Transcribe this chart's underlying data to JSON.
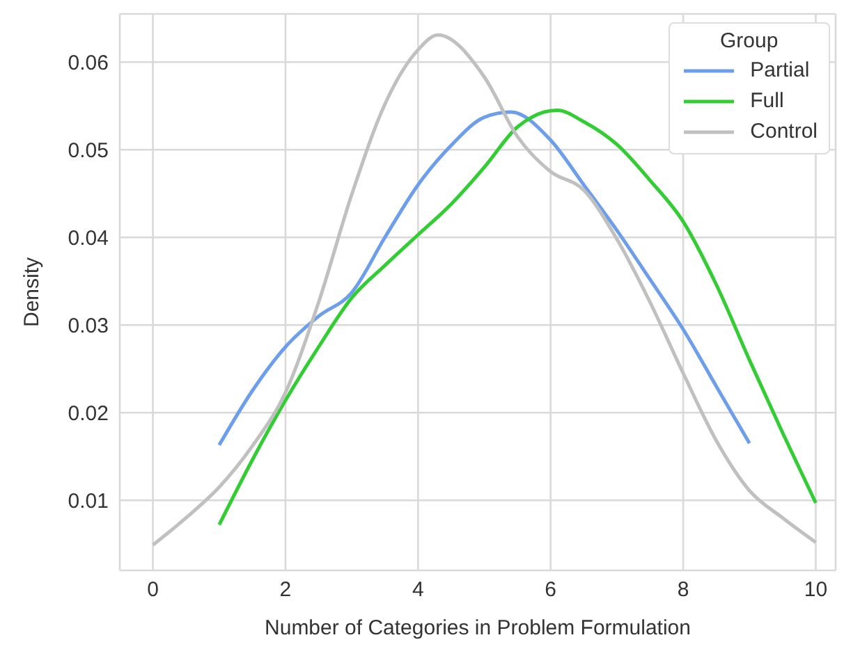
{
  "chart_data": {
    "type": "line",
    "xlabel": "Number of Categories in Problem Formulation",
    "ylabel": "Density",
    "legend_title": "Group",
    "legend": "top right",
    "grid": true,
    "marker": "none",
    "line_style": "solid",
    "xlim": [
      -0.5,
      10.3
    ],
    "xticks": [
      0,
      2,
      4,
      6,
      8,
      10
    ],
    "ylim": [
      0.002,
      0.0655
    ],
    "yticks": [
      0.01,
      0.02,
      0.03,
      0.04,
      0.05,
      0.06
    ],
    "series": [
      {
        "name": "Partial",
        "color": "#6d9eeb",
        "x": [
          1,
          1.5,
          2,
          2.5,
          3,
          3.5,
          4,
          4.5,
          5,
          5.4,
          6,
          6.5,
          7,
          7.5,
          8,
          8.5,
          9
        ],
        "values": [
          0.0163,
          0.0225,
          0.0275,
          0.031,
          0.0337,
          0.04,
          0.046,
          0.0505,
          0.0537,
          0.0543,
          0.0511,
          0.046,
          0.0408,
          0.0352,
          0.0295,
          0.023,
          0.0165
        ]
      },
      {
        "name": "Full",
        "color": "#32cd32",
        "x": [
          1,
          1.5,
          2,
          2.5,
          3,
          3.5,
          4,
          4.5,
          5,
          5.5,
          6.1,
          6.5,
          7,
          7.5,
          8,
          8.5,
          9,
          9.5,
          10
        ],
        "values": [
          0.0072,
          0.0146,
          0.0214,
          0.0275,
          0.0331,
          0.0368,
          0.0403,
          0.0438,
          0.048,
          0.0526,
          0.0545,
          0.0532,
          0.0506,
          0.0465,
          0.0418,
          0.0346,
          0.026,
          0.0177,
          0.0097
        ]
      },
      {
        "name": "Control",
        "color": "#c0c0c0",
        "x": [
          0,
          0.5,
          1,
          1.5,
          2,
          2.5,
          3,
          3.5,
          4,
          4.3,
          5,
          5.5,
          6,
          6.5,
          7,
          7.5,
          8,
          8.5,
          9,
          9.5,
          10
        ],
        "values": [
          0.0049,
          0.008,
          0.0115,
          0.0162,
          0.0223,
          0.0326,
          0.0449,
          0.0552,
          0.0614,
          0.0631,
          0.0583,
          0.0515,
          0.0475,
          0.0454,
          0.0398,
          0.0326,
          0.0245,
          0.0168,
          0.0111,
          0.008,
          0.0052
        ]
      }
    ]
  }
}
